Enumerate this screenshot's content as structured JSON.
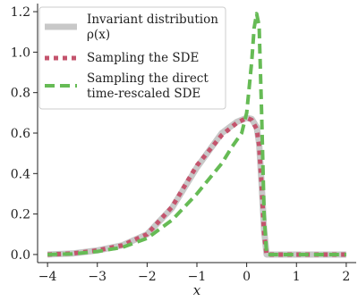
{
  "chart_data": {
    "type": "line",
    "xlabel": "x",
    "ylabel": "",
    "xlim": [
      -4.2,
      2.2
    ],
    "ylim": [
      -0.04,
      1.24
    ],
    "xticks": [
      -4,
      -3,
      -2,
      -1,
      0,
      1,
      2
    ],
    "xtick_labels": [
      "−4",
      "−3",
      "−2",
      "−1",
      "0",
      "1",
      "2"
    ],
    "yticks": [
      0.0,
      0.2,
      0.4,
      0.6,
      0.8,
      1.0,
      1.2
    ],
    "ytick_labels": [
      "0.0",
      "0.2",
      "0.4",
      "0.6",
      "0.8",
      "1.0",
      "1.2"
    ],
    "grid": false,
    "legend_position": "top-left",
    "series": [
      {
        "name": "Invariant distribution ρ(x)",
        "legend_lines": [
          "Invariant distribution",
          "ρ(x)"
        ],
        "color": "#c8c8c8",
        "style": "solid",
        "x": [
          -4.0,
          -3.5,
          -3.0,
          -2.5,
          -2.0,
          -1.5,
          -1.0,
          -0.5,
          -0.2,
          0.0,
          0.1,
          0.2,
          0.25,
          0.3,
          0.35,
          0.4,
          1.0,
          2.0
        ],
        "y": [
          0.0,
          0.005,
          0.02,
          0.045,
          0.1,
          0.23,
          0.43,
          0.6,
          0.655,
          0.675,
          0.67,
          0.63,
          0.55,
          0.35,
          0.12,
          0.0,
          0.0,
          0.0
        ]
      },
      {
        "name": "Sampling the SDE",
        "legend_lines": [
          "Sampling the SDE"
        ],
        "color": "#c4546d",
        "style": "dotted",
        "x": [
          -4.0,
          -3.5,
          -3.0,
          -2.5,
          -2.0,
          -1.5,
          -1.0,
          -0.5,
          -0.2,
          0.0,
          0.1,
          0.2,
          0.25,
          0.3,
          0.35,
          0.4,
          1.0,
          2.0
        ],
        "y": [
          0.0,
          0.005,
          0.02,
          0.045,
          0.1,
          0.235,
          0.44,
          0.59,
          0.65,
          0.675,
          0.665,
          0.62,
          0.54,
          0.34,
          0.1,
          0.0,
          0.0,
          0.0
        ]
      },
      {
        "name": "Sampling the direct time-rescaled SDE",
        "legend_lines": [
          "Sampling the direct",
          "time-rescaled SDE"
        ],
        "color": "#66bb55",
        "style": "dashed",
        "x": [
          -4.0,
          -3.5,
          -3.0,
          -2.5,
          -2.0,
          -1.5,
          -1.0,
          -0.5,
          -0.3,
          -0.1,
          0.0,
          0.1,
          0.15,
          0.2,
          0.25,
          0.3,
          0.35,
          0.4,
          1.0,
          2.0
        ],
        "y": [
          0.0,
          0.003,
          0.015,
          0.035,
          0.08,
          0.17,
          0.3,
          0.45,
          0.53,
          0.6,
          0.7,
          0.95,
          1.12,
          1.19,
          1.13,
          0.7,
          0.2,
          0.0,
          0.0,
          0.0
        ]
      }
    ]
  }
}
